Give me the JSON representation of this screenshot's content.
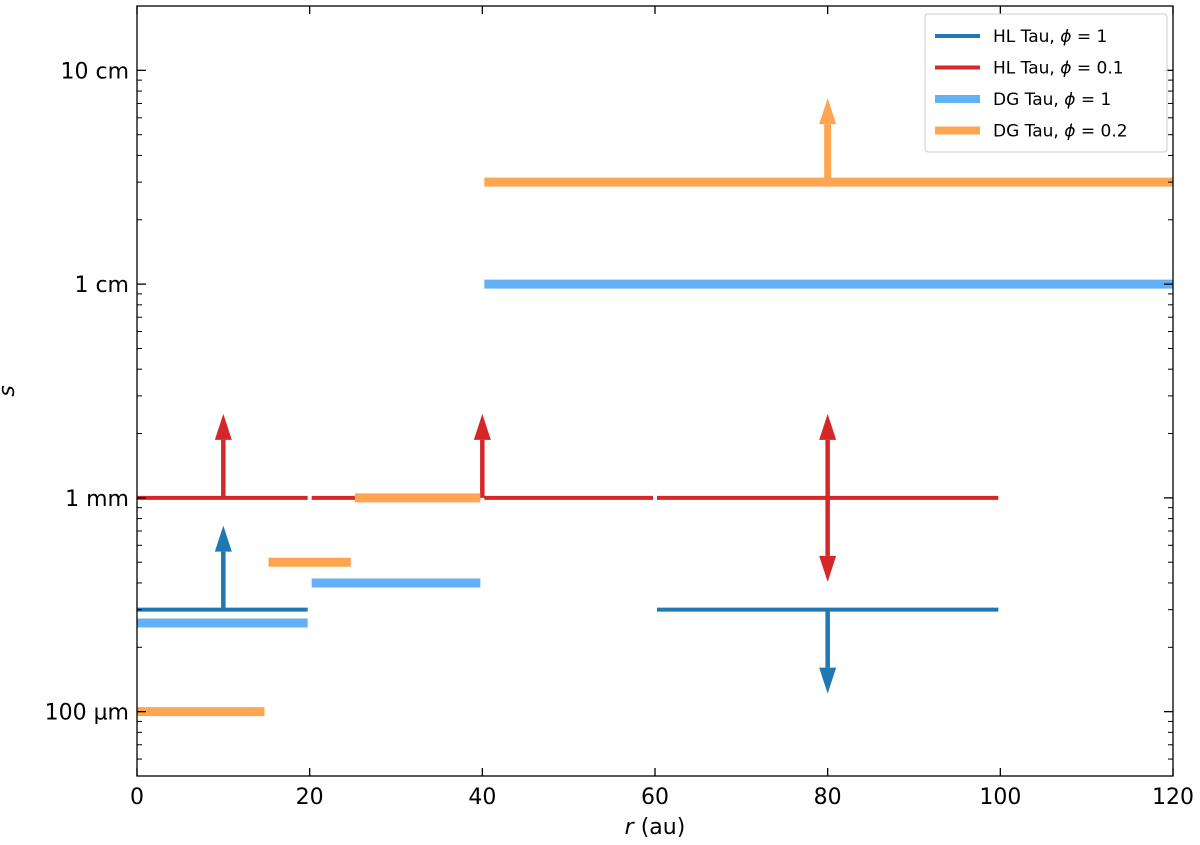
{
  "chart_data": {
    "type": "line",
    "xlabel": {
      "var": "r",
      "unit": " (au)"
    },
    "ylabel": "s",
    "y_scale": "log",
    "xlim": [
      0,
      120
    ],
    "ylim_cm": [
      0.005,
      20
    ],
    "x_ticks": [
      0,
      20,
      40,
      60,
      80,
      100,
      120
    ],
    "y_ticks": [
      {
        "value_cm": 0.01,
        "label": "100 µm"
      },
      {
        "value_cm": 0.1,
        "label": "1 mm"
      },
      {
        "value_cm": 1,
        "label": "1 cm"
      },
      {
        "value_cm": 10,
        "label": "10 cm"
      }
    ],
    "grid": false,
    "legend_position": "top-right",
    "series": [
      {
        "name": "HL Tau, ϕ = 1",
        "legend": {
          "prefix": "HL Tau, ",
          "phi": "ϕ",
          "suffix": " = 1"
        },
        "color": "#1f77b4",
        "width": "thin",
        "segments": [
          {
            "x": [
              0,
              20
            ],
            "y_cm": 0.03
          },
          {
            "x": [
              60,
              100
            ],
            "y_cm": 0.03
          }
        ],
        "arrows": [
          {
            "x": 10,
            "y_cm": 0.03,
            "direction": "up"
          },
          {
            "x": 80,
            "y_cm": 0.03,
            "direction": "down"
          }
        ]
      },
      {
        "name": "HL Tau, ϕ = 0.1",
        "legend": {
          "prefix": "HL Tau, ",
          "phi": "ϕ",
          "suffix": " = 0.1"
        },
        "color": "#d62728",
        "width": "thin",
        "segments": [
          {
            "x": [
              0,
              20
            ],
            "y_cm": 0.1
          },
          {
            "x": [
              20,
              40
            ],
            "y_cm": 0.1
          },
          {
            "x": [
              40,
              60
            ],
            "y_cm": 0.1
          },
          {
            "x": [
              60,
              100
            ],
            "y_cm": 0.1
          }
        ],
        "arrows": [
          {
            "x": 10,
            "y_cm": 0.1,
            "direction": "up"
          },
          {
            "x": 40,
            "y_cm": 0.1,
            "direction": "up"
          },
          {
            "x": 80,
            "y_cm": 0.1,
            "direction": "both"
          }
        ]
      },
      {
        "name": "DG Tau, ϕ = 1",
        "legend": {
          "prefix": "DG Tau, ",
          "phi": "ϕ",
          "suffix": " = 1"
        },
        "color": "#63b0f5",
        "width": "thick",
        "segments": [
          {
            "x": [
              0,
              20
            ],
            "y_cm": 0.026
          },
          {
            "x": [
              20,
              40
            ],
            "y_cm": 0.04
          },
          {
            "x": [
              40,
              120
            ],
            "y_cm": 1.0
          }
        ],
        "arrows": []
      },
      {
        "name": "DG Tau, ϕ = 0.2",
        "legend": {
          "prefix": "DG Tau, ",
          "phi": "ϕ",
          "suffix": " = 0.2"
        },
        "color": "#fea552",
        "width": "thick",
        "segments": [
          {
            "x": [
              0,
              15
            ],
            "y_cm": 0.01
          },
          {
            "x": [
              15,
              25
            ],
            "y_cm": 0.05
          },
          {
            "x": [
              25,
              40
            ],
            "y_cm": 0.1
          },
          {
            "x": [
              40,
              120
            ],
            "y_cm": 3.0
          }
        ],
        "arrows": [
          {
            "x": 80,
            "y_cm": 3.0,
            "direction": "up"
          }
        ]
      }
    ]
  }
}
